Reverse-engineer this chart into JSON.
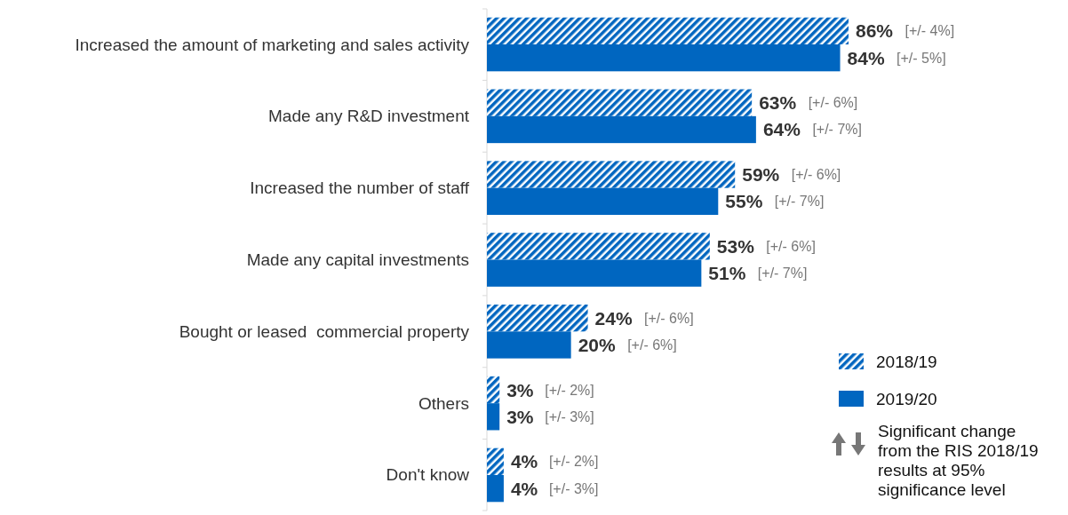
{
  "chart_data": {
    "type": "bar",
    "orientation": "horizontal",
    "categories": [
      "Increased the amount of marketing and sales activity",
      "Made any R&D investment",
      "Increased the number of staff",
      "Made any capital investments",
      "Bought or leased  commercial property",
      "Others",
      "Don't know"
    ],
    "series": [
      {
        "name": "2018/19",
        "color": "#0066c0",
        "values": [
          86,
          63,
          59,
          53,
          24,
          3,
          4
        ],
        "value_labels": [
          "86%",
          "63%",
          "59%",
          "53%",
          "24%",
          "3%",
          "4%"
        ]
      },
      {
        "name": "2019/20",
        "color": "#0066c0",
        "values": [
          84,
          64,
          55,
          51,
          20,
          3,
          4
        ],
        "value_labels": [
          "84%",
          "64%",
          "55%",
          "51%",
          "20%",
          "3%",
          "4%"
        ]
      }
    ],
    "tick_labels": "y",
    "legend": "bottom right",
    "annotations": [
      "[+/- 4%]",
      "[+/- 5%]",
      "[+/- 6%]",
      "[+/- 7%]",
      "[+/- 6%]",
      "[+/- 7%]",
      "[+/- 6%]",
      "[+/- 7%]",
      "[+/- 6%]",
      "[+/- 6%]",
      "[+/- 2%]",
      "[+/- 3%]",
      "[+/- 2%]",
      "[+/- 3%]",
      "Significant change from the RIS 2018/19 results at 95% significance level"
    ]
  }
}
